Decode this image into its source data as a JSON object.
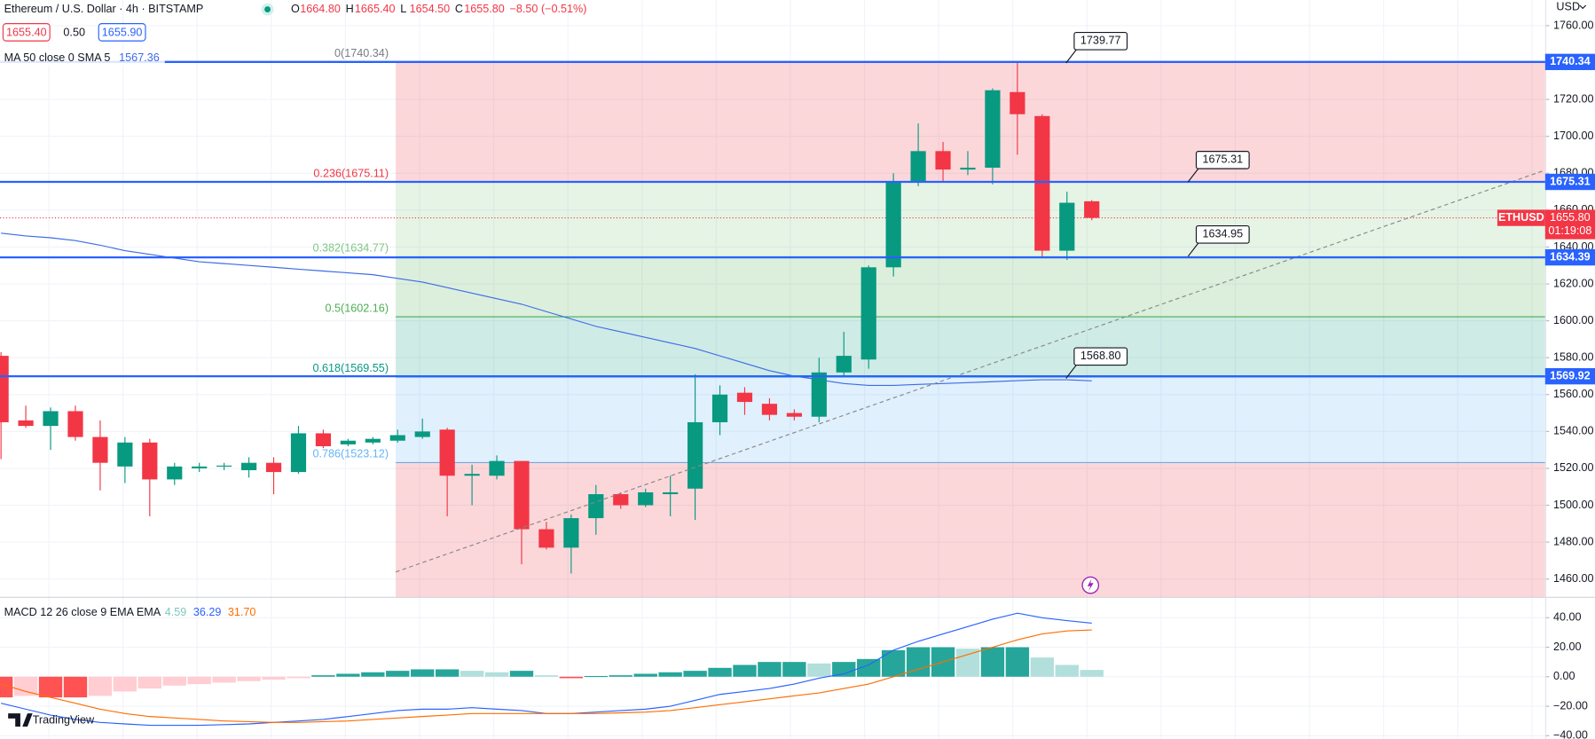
{
  "header": {
    "symbol": "Ethereum / U.S. Dollar · 4h · BITSTAMP",
    "ohlc": [
      {
        "key": "O",
        "value": "1664.80"
      },
      {
        "key": "H",
        "value": "1665.40"
      },
      {
        "key": "L",
        "value": "1654.50"
      },
      {
        "key": "C",
        "value": "1655.80"
      }
    ],
    "change": "−8.50 (−0.51%)",
    "bid": "1655.40",
    "spread": "0.50",
    "ask": "1655.90",
    "currency": "USD",
    "brand": "TradingView"
  },
  "chart_data": [
    {
      "type": "candlestick",
      "up_color": "#089981",
      "down_color": "#f23645",
      "open": [
        1581,
        1546,
        1543,
        1551,
        1537,
        1521,
        1534,
        1514,
        1520,
        1521,
        1519,
        1523,
        1518,
        1539,
        1533,
        1534,
        1535,
        1537,
        1541,
        1516,
        1516,
        1524,
        1487,
        1477,
        1493,
        1506,
        1500,
        1506,
        1509,
        1545,
        1561,
        1555,
        1550,
        1548,
        1572,
        1579,
        1629,
        1675,
        1692,
        1682,
        1683,
        1724,
        1711,
        1638,
        1664.8
      ],
      "high": [
        1583,
        1554,
        1553,
        1554,
        1546,
        1537,
        1536,
        1523,
        1523,
        1523,
        1526,
        1526,
        1543,
        1541,
        1536,
        1537,
        1541,
        1547,
        1542,
        1522,
        1527,
        1524,
        1491,
        1495,
        1511,
        1507,
        1509,
        1516,
        1571,
        1565,
        1564,
        1558,
        1552,
        1580,
        1594,
        1630,
        1680,
        1707,
        1697,
        1692,
        1726,
        1740,
        1712,
        1670,
        1665.4
      ],
      "low": [
        1525,
        1542,
        1530,
        1535,
        1508,
        1512,
        1494,
        1511,
        1518,
        1519,
        1515,
        1506,
        1517,
        1531,
        1532,
        1533,
        1534,
        1536,
        1494,
        1500,
        1514,
        1468,
        1476,
        1463,
        1484,
        1498,
        1499,
        1494,
        1492,
        1538,
        1549,
        1546,
        1546,
        1545,
        1570,
        1574,
        1624,
        1673,
        1675,
        1679,
        1674,
        1690,
        1634,
        1633,
        1654.5
      ],
      "close": [
        1545,
        1543,
        1551,
        1537,
        1523,
        1534,
        1514,
        1521,
        1521,
        1521.5,
        1523,
        1518,
        1539,
        1532,
        1535,
        1536,
        1538,
        1540,
        1516,
        1517,
        1524,
        1487,
        1477,
        1493,
        1506,
        1500,
        1507,
        1507,
        1545,
        1560,
        1556,
        1549,
        1548,
        1572,
        1581,
        1629,
        1675,
        1692,
        1682,
        1683,
        1725,
        1712,
        1638,
        1664,
        1655.8
      ],
      "ylim": [
        1450.05,
        1773.8
      ],
      "yticks": [
        {
          "value": 1760,
          "label": "1760.00"
        },
        {
          "value": 1720,
          "label": "1720.00"
        },
        {
          "value": 1700,
          "label": "1700.00"
        },
        {
          "value": 1680,
          "label": "1680.00"
        },
        {
          "value": 1660,
          "label": "1660.00"
        },
        {
          "value": 1640,
          "label": "1640.00"
        },
        {
          "value": 1620,
          "label": "1620.00"
        },
        {
          "value": 1600,
          "label": "1600.00"
        },
        {
          "value": 1580,
          "label": "1580.00"
        },
        {
          "value": 1560,
          "label": "1560.00"
        },
        {
          "value": 1540,
          "label": "1540.00"
        },
        {
          "value": 1520,
          "label": "1520.00"
        },
        {
          "value": 1500,
          "label": "1500.00"
        },
        {
          "value": 1480,
          "label": "1480.00"
        },
        {
          "value": 1460,
          "label": "1460.00"
        }
      ],
      "grid": true,
      "ma": {
        "name": "MA 50 close 0 SMA 5",
        "value_label": "1567.36",
        "color": "#3d6be6",
        "values": [
          1647.5,
          1646,
          1645,
          1643.5,
          1641,
          1638,
          1636,
          1634,
          1632,
          1631,
          1630,
          1629,
          1628,
          1627,
          1626,
          1625,
          1623,
          1621,
          1618,
          1615,
          1612,
          1609,
          1605,
          1601,
          1597,
          1594,
          1591,
          1588,
          1585,
          1581,
          1577,
          1573,
          1570,
          1568,
          1566,
          1565,
          1565,
          1565.5,
          1566,
          1566.5,
          1567,
          1567.5,
          1568,
          1568,
          1567.4
        ]
      },
      "fib": [
        {
          "label": "0(1740.34)",
          "value": 1740.34,
          "color": "#787b86"
        },
        {
          "label": "0.236(1675.11)",
          "value": 1675.11,
          "color": "#f23645"
        },
        {
          "label": "0.382(1634.77)",
          "value": 1634.77,
          "color": "#81c784"
        },
        {
          "label": "0.5(1602.16)",
          "value": 1602.16,
          "color": "#4caf50"
        },
        {
          "label": "0.618(1569.55)",
          "value": 1569.55,
          "color": "#089981"
        },
        {
          "label": "0.786(1523.12)",
          "value": 1523.12,
          "color": "#64b5f6"
        }
      ],
      "fib_below_color": "#f23645",
      "hlines": [
        1740.34,
        1675.31,
        1634.39,
        1569.92
      ],
      "hline_color": "#2962ff",
      "callouts": [
        1739.77,
        1675.31,
        1634.95,
        {
          "value": 1568.8,
          "label": "1568.80"
        }
      ],
      "last_price": {
        "symbol": "ETHUSD",
        "value": 1655.8,
        "label": "1655.80",
        "countdown": "01:19:08",
        "color": "#f23645"
      }
    },
    {
      "type": "macd",
      "name": "MACD 12 26 close 9 EMA EMA",
      "histogram": {
        "value_label": "4.59",
        "colors": {
          "up": "#26a69a",
          "up_fading": "#b2dfdb",
          "down": "#ff5252",
          "down_fading": "#ffcdd2"
        },
        "values": [
          -14,
          -13,
          -14,
          -14,
          -13,
          -10,
          -8,
          -6,
          -5,
          -4,
          -3,
          -2,
          -1,
          1,
          2,
          3,
          4,
          5,
          5,
          4,
          3,
          4,
          1,
          -1,
          0.5,
          1,
          2,
          3,
          4,
          6,
          8,
          10,
          10,
          9,
          10,
          12,
          18,
          20,
          20,
          19,
          20,
          20,
          13,
          8,
          4.59
        ]
      },
      "macd": {
        "value_label": "36.29",
        "color": "#2962ff",
        "values": [
          -18,
          -22,
          -26,
          -29,
          -31,
          -32,
          -33,
          -33,
          -33,
          -32.5,
          -32,
          -31,
          -30,
          -29,
          -27,
          -25,
          -23,
          -22,
          -22,
          -21,
          -22,
          -23,
          -25,
          -25,
          -24,
          -23,
          -22,
          -20,
          -16,
          -12,
          -10,
          -8,
          -5,
          -1,
          2,
          8,
          18,
          24,
          29,
          34,
          39,
          43,
          40,
          38,
          36.29
        ]
      },
      "signal": {
        "value_label": "31.70",
        "color": "#ff6d00",
        "values": [
          -5,
          -10,
          -14,
          -18,
          -22,
          -25,
          -27,
          -28,
          -29,
          -30,
          -30.5,
          -31,
          -31,
          -30.5,
          -30,
          -29,
          -28,
          -27,
          -26,
          -25,
          -25,
          -25,
          -25,
          -25,
          -25,
          -24.5,
          -24,
          -23,
          -21,
          -19,
          -17,
          -15,
          -13,
          -11,
          -8,
          -5,
          0,
          5,
          10,
          15,
          20,
          25,
          29,
          31,
          31.7
        ]
      },
      "ylim": [
        -42.07,
        53.1
      ],
      "yticks": [
        {
          "value": 40,
          "label": "40.00"
        },
        {
          "value": 20,
          "label": "20.00"
        },
        {
          "value": 0,
          "label": "0.00"
        },
        {
          "value": -20,
          "label": "−20.00"
        },
        {
          "value": -40,
          "label": "−40.00"
        }
      ]
    }
  ]
}
